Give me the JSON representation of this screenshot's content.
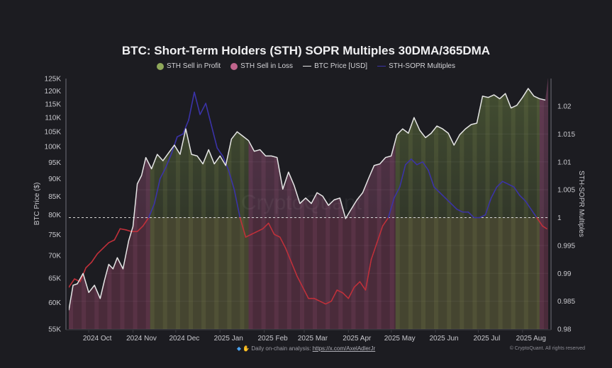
{
  "chart_data": {
    "type": "line",
    "title": "BTC: Short-Term Holders (STH) SOPR Multiples 30DMA/365DMA",
    "legend": [
      {
        "label": "STH Sell in Profit",
        "kind": "dot",
        "color": "#8fa85a"
      },
      {
        "label": "STH Sell in Loss",
        "kind": "dot",
        "color": "#c0648c"
      },
      {
        "label": "BTC Price [USD]",
        "kind": "line",
        "color": "#e6e6e6"
      },
      {
        "label": "STH-SOPR Multiples",
        "kind": "line",
        "color": "#3b33a8"
      }
    ],
    "legend_position": "top-center",
    "left_axis": {
      "title": "BTC Price ($)",
      "scale": "log",
      "range": [
        55000,
        125000
      ],
      "ticks": [
        "125K",
        "120K",
        "115K",
        "110K",
        "105K",
        "100K",
        "95K",
        "90K",
        "85K",
        "80K",
        "75K",
        "70K",
        "65K",
        "60K",
        "55K"
      ],
      "tick_values": [
        125000,
        120000,
        115000,
        110000,
        105000,
        100000,
        95000,
        90000,
        85000,
        80000,
        75000,
        70000,
        65000,
        60000,
        55000
      ]
    },
    "right_axis": {
      "title": "STH-SOPR Multiples",
      "scale": "linear",
      "range": [
        0.98,
        1.0245
      ],
      "ticks": [
        "1.02",
        "1.015",
        "1.01",
        "1.005",
        "1",
        "0.995",
        "0.99",
        "0.985",
        "0.98"
      ],
      "tick_values": [
        1.02,
        1.015,
        1.01,
        1.005,
        1.0,
        0.995,
        0.99,
        0.985,
        0.98
      ]
    },
    "x_axis": {
      "range": [
        "2024-09-17",
        "2025-08-20"
      ],
      "ticks": [
        "2024 Oct",
        "2024 Nov",
        "2024 Dec",
        "2025 Jan",
        "2025 Feb",
        "2025 Mar",
        "2025 Apr",
        "2025 May",
        "2025 Jun",
        "2025 Jul",
        "2025 Aug"
      ],
      "tick_days": [
        14,
        45,
        75,
        106,
        137,
        165,
        196,
        226,
        257,
        287,
        318
      ]
    },
    "reference_line": {
      "value": 1.0,
      "axis": "right",
      "style": "dashed"
    },
    "grid": true,
    "series": [
      {
        "name": "BTC Price [USD]",
        "axis": "left",
        "x_days": [
          0,
          3,
          6,
          10,
          14,
          18,
          22,
          25,
          28,
          31,
          34,
          38,
          42,
          45,
          48,
          51,
          54,
          58,
          62,
          66,
          70,
          74,
          78,
          82,
          86,
          90,
          94,
          98,
          102,
          106,
          110,
          114,
          118,
          122,
          126,
          130,
          134,
          138,
          142,
          146,
          150,
          154,
          158,
          162,
          166,
          170,
          174,
          178,
          182,
          186,
          190,
          194,
          198,
          202,
          206,
          210,
          214,
          218,
          222,
          226,
          230,
          234,
          238,
          242,
          246,
          250,
          254,
          258,
          262,
          266,
          270,
          274,
          278,
          282,
          286,
          290,
          294,
          298,
          302,
          306,
          310,
          314,
          318,
          322,
          326,
          330,
          334
        ],
        "values": [
          58500,
          63500,
          63800,
          66000,
          62000,
          63500,
          60800,
          64500,
          68000,
          67000,
          69500,
          67000,
          73500,
          77000,
          88500,
          91000,
          96500,
          93000,
          97500,
          95500,
          98000,
          100500,
          97500,
          106000,
          97500,
          97000,
          94500,
          99000,
          94500,
          97000,
          94000,
          102500,
          105000,
          103500,
          102000,
          98500,
          99000,
          97000,
          97000,
          96500,
          87000,
          92000,
          88000,
          83000,
          84500,
          83000,
          86000,
          85000,
          82500,
          84000,
          84500,
          79000,
          81500,
          84000,
          86000,
          90000,
          94000,
          94500,
          96500,
          97000,
          104000,
          106000,
          104500,
          110000,
          105500,
          103000,
          104500,
          107000,
          106000,
          104500,
          100500,
          104000,
          106000,
          107500,
          108000,
          118000,
          117500,
          118500,
          117000,
          119000,
          113500,
          114500,
          117500,
          121000,
          118000,
          117000,
          116500
        ]
      },
      {
        "name": "STH-SOPR Multiples",
        "axis": "right",
        "x_days": [
          0,
          4,
          8,
          12,
          16,
          20,
          24,
          28,
          32,
          36,
          40,
          44,
          48,
          52,
          56,
          60,
          64,
          68,
          72,
          76,
          80,
          84,
          88,
          92,
          96,
          100,
          104,
          108,
          112,
          116,
          120,
          124,
          128,
          132,
          136,
          140,
          144,
          148,
          152,
          156,
          160,
          164,
          168,
          172,
          176,
          180,
          184,
          188,
          192,
          196,
          200,
          204,
          208,
          212,
          216,
          220,
          224,
          228,
          232,
          236,
          240,
          244,
          248,
          252,
          256,
          260,
          264,
          268,
          272,
          276,
          280,
          284,
          288,
          292,
          296,
          300,
          304,
          308,
          312,
          316,
          320,
          324,
          328,
          332,
          335
        ],
        "values": [
          0.9875,
          0.989,
          0.9885,
          0.991,
          0.992,
          0.9935,
          0.9945,
          0.9955,
          0.996,
          0.998,
          0.9978,
          0.9975,
          0.9975,
          0.9985,
          1.0,
          1.0025,
          1.007,
          1.009,
          1.0115,
          1.0145,
          1.015,
          1.0175,
          1.0225,
          1.0185,
          1.0205,
          1.0165,
          1.0125,
          1.011,
          1.0085,
          1.005,
          1.0,
          0.9965,
          0.997,
          0.9975,
          0.998,
          0.999,
          0.997,
          0.9965,
          0.9945,
          0.992,
          0.9895,
          0.9875,
          0.9855,
          0.9855,
          0.985,
          0.9845,
          0.985,
          0.987,
          0.9865,
          0.9855,
          0.9875,
          0.9885,
          0.987,
          0.9925,
          0.9955,
          0.9985,
          1.0,
          1.0035,
          1.0055,
          1.0095,
          1.0105,
          1.0095,
          1.01,
          1.0085,
          1.0055,
          1.0045,
          1.0035,
          1.0025,
          1.0015,
          1.001,
          1.001,
          1.0,
          1.0,
          1.0005,
          1.0035,
          1.0055,
          1.0065,
          1.006,
          1.0055,
          1.004,
          1.003,
          1.0015,
          1.0,
          0.9985,
          0.998
        ]
      }
    ],
    "regions": {
      "description": "Background shading: green = STH Sell in Profit (multiple > 1), pink = STH Sell in Loss (multiple < 1)",
      "spans": [
        {
          "start_day": 0,
          "end_day": 57,
          "state": "loss"
        },
        {
          "start_day": 57,
          "end_day": 126,
          "state": "profit"
        },
        {
          "start_day": 126,
          "end_day": 229,
          "state": "loss"
        },
        {
          "start_day": 229,
          "end_day": 330,
          "state": "profit"
        },
        {
          "start_day": 330,
          "end_day": 336,
          "state": "loss"
        }
      ]
    },
    "watermark": "CryptoQuant"
  },
  "footer": {
    "prefix_icons": [
      "diamond-icon",
      "hands-icon"
    ],
    "text": "Daily on-chain analysis:",
    "link": "https://x.com/AxelAdlerJr",
    "copyright": "© CryptoQuant. All rights reserved"
  }
}
